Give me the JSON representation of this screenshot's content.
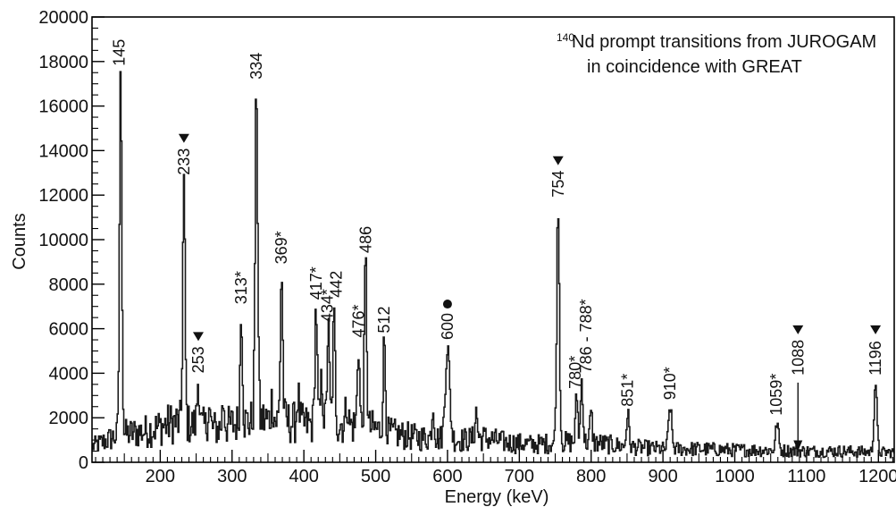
{
  "chart_data": {
    "type": "line",
    "style": "histogram",
    "title_sup": "140",
    "title_line1": "Nd prompt transitions from JUROGAM",
    "title_line2": "in coincidence with GREAT",
    "xlabel": "Energy (keV)",
    "ylabel": "Counts",
    "xlim": [
      105,
      1222
    ],
    "ylim": [
      0,
      20000
    ],
    "xticks": [
      200,
      300,
      400,
      500,
      600,
      700,
      800,
      900,
      1000,
      1100,
      1200
    ],
    "yticks": [
      0,
      2000,
      4000,
      6000,
      8000,
      10000,
      12000,
      14000,
      16000,
      18000,
      20000
    ],
    "grid": false,
    "colors": {
      "line": "#1a1a1a",
      "axis": "#000000"
    },
    "baseline": [
      [
        105,
        700
      ],
      [
        120,
        900
      ],
      [
        140,
        1200
      ],
      [
        160,
        1300
      ],
      [
        180,
        1400
      ],
      [
        200,
        1600
      ],
      [
        220,
        1800
      ],
      [
        240,
        1700
      ],
      [
        260,
        1600
      ],
      [
        280,
        1500
      ],
      [
        300,
        1700
      ],
      [
        320,
        1800
      ],
      [
        340,
        1900
      ],
      [
        360,
        1900
      ],
      [
        380,
        1800
      ],
      [
        400,
        1700
      ],
      [
        420,
        1700
      ],
      [
        440,
        1800
      ],
      [
        460,
        1700
      ],
      [
        480,
        1600
      ],
      [
        500,
        1500
      ],
      [
        520,
        1300
      ],
      [
        540,
        1200
      ],
      [
        560,
        1100
      ],
      [
        580,
        1100
      ],
      [
        620,
        1000
      ],
      [
        650,
        1100
      ],
      [
        680,
        900
      ],
      [
        720,
        800
      ],
      [
        760,
        900
      ],
      [
        800,
        900
      ],
      [
        850,
        700
      ],
      [
        900,
        600
      ],
      [
        950,
        600
      ],
      [
        1000,
        550
      ],
      [
        1050,
        550
      ],
      [
        1100,
        500
      ],
      [
        1150,
        500
      ],
      [
        1200,
        450
      ],
      [
        1222,
        450
      ]
    ],
    "peaks": [
      {
        "e": 145,
        "h": 17500,
        "w": 1.6
      },
      {
        "e": 233,
        "h": 12600,
        "w": 1.6
      },
      {
        "e": 253,
        "h": 3700,
        "w": 1.6
      },
      {
        "e": 268,
        "h": 2400,
        "w": 1.6
      },
      {
        "e": 288,
        "h": 2700,
        "w": 1.6
      },
      {
        "e": 313,
        "h": 6800,
        "w": 1.6
      },
      {
        "e": 334,
        "h": 16900,
        "w": 1.8
      },
      {
        "e": 356,
        "h": 2800,
        "w": 1.6
      },
      {
        "e": 369,
        "h": 8600,
        "w": 1.6
      },
      {
        "e": 392,
        "h": 3000,
        "w": 1.6
      },
      {
        "e": 417,
        "h": 7000,
        "w": 1.6
      },
      {
        "e": 425,
        "h": 3700,
        "w": 1.6
      },
      {
        "e": 434,
        "h": 6000,
        "w": 1.6
      },
      {
        "e": 442,
        "h": 6400,
        "w": 1.6
      },
      {
        "e": 460,
        "h": 2700,
        "w": 1.6
      },
      {
        "e": 476,
        "h": 5300,
        "w": 1.6
      },
      {
        "e": 486,
        "h": 9100,
        "w": 1.6
      },
      {
        "e": 512,
        "h": 5500,
        "w": 1.6
      },
      {
        "e": 580,
        "h": 2500,
        "w": 1.6
      },
      {
        "e": 600,
        "h": 5200,
        "w": 3.0
      },
      {
        "e": 640,
        "h": 2300,
        "w": 1.6
      },
      {
        "e": 754,
        "h": 11600,
        "w": 1.8
      },
      {
        "e": 780,
        "h": 3000,
        "w": 1.6
      },
      {
        "e": 787,
        "h": 3700,
        "w": 1.6
      },
      {
        "e": 800,
        "h": 2200,
        "w": 1.6
      },
      {
        "e": 851,
        "h": 2200,
        "w": 1.8
      },
      {
        "e": 910,
        "h": 2500,
        "w": 2.2
      },
      {
        "e": 1059,
        "h": 1800,
        "w": 2.0
      },
      {
        "e": 1196,
        "h": 3600,
        "w": 2.0
      }
    ],
    "labels": [
      {
        "text": "145",
        "e": 143,
        "y": 17800,
        "triangle": false
      },
      {
        "text": "233",
        "e": 233,
        "y": 12900,
        "triangle": true
      },
      {
        "text": "253",
        "e": 253,
        "y": 4000,
        "triangle": true
      },
      {
        "text": "313*",
        "e": 313,
        "y": 7100,
        "triangle": false
      },
      {
        "text": "334",
        "e": 334,
        "y": 17200,
        "triangle": false
      },
      {
        "text": "369*",
        "e": 369,
        "y": 8900,
        "triangle": false
      },
      {
        "text": "417*",
        "e": 417,
        "y": 7300,
        "triangle": false
      },
      {
        "text": "434*",
        "e": 433,
        "y": 6300,
        "triangle": false
      },
      {
        "text": "442",
        "e": 445,
        "y": 7400,
        "triangle": false
      },
      {
        "text": "476*",
        "e": 476,
        "y": 5600,
        "triangle": false
      },
      {
        "text": "486",
        "e": 486,
        "y": 9400,
        "triangle": false
      },
      {
        "text": "512",
        "e": 512,
        "y": 5800,
        "triangle": false
      },
      {
        "text": "600",
        "e": 600,
        "y": 5500,
        "triangle": false,
        "dot": true
      },
      {
        "text": "754",
        "e": 754,
        "y": 11900,
        "triangle": true
      },
      {
        "text": "780*",
        "e": 778,
        "y": 3300,
        "triangle": false
      },
      {
        "text": "786 - 788*",
        "e": 793,
        "y": 4000,
        "triangle": false
      },
      {
        "text": "851*",
        "e": 851,
        "y": 2500,
        "triangle": false
      },
      {
        "text": "910*",
        "e": 910,
        "y": 2800,
        "triangle": false
      },
      {
        "text": "1059*",
        "e": 1058,
        "y": 2100,
        "triangle": false
      },
      {
        "text": "1088",
        "e": 1088,
        "y": 3900,
        "triangle": true,
        "arrow": true
      },
      {
        "text": "1196",
        "e": 1196,
        "y": 3900,
        "triangle": true
      }
    ]
  }
}
